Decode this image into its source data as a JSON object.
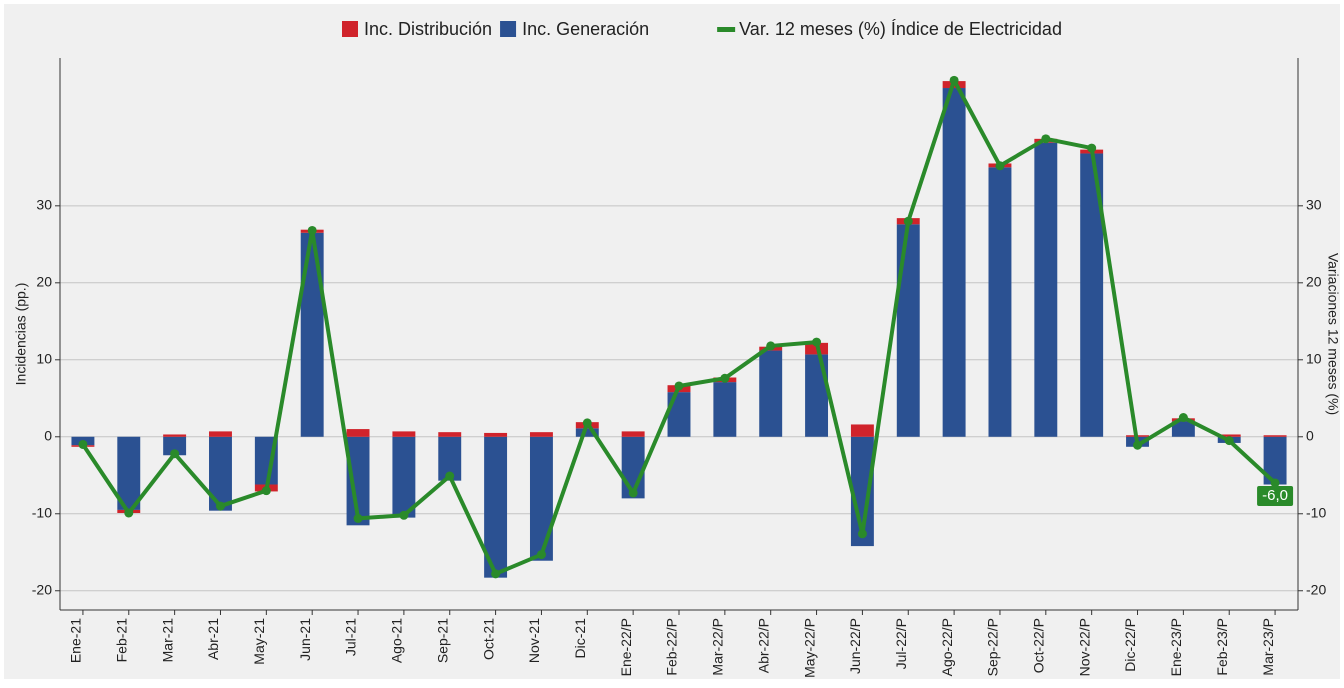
{
  "chart_data": {
    "type": "bar-line",
    "y_label": "Incidencias (pp.)",
    "y2_label": "Variaciones 12 meses (%)",
    "categories": [
      "Ene-21",
      "Feb-21",
      "Mar-21",
      "Abr-21",
      "May-21",
      "Jun-21",
      "Jul-21",
      "Ago-21",
      "Sep-21",
      "Oct-21",
      "Nov-21",
      "Dic-21",
      "Ene-22/P",
      "Feb-22/P",
      "Mar-22/P",
      "Abr-22/P",
      "May-22/P",
      "Jun-22/P",
      "Jul-22/P",
      "Ago-22/P",
      "Sep-22/P",
      "Oct-22/P",
      "Nov-22/P",
      "Dic-22/P",
      "Ene-23/P",
      "Feb-23/P",
      "Mar-23/P"
    ],
    "series": [
      {
        "name": "Inc. Generación",
        "color": "#2b5192",
        "stack": "inc",
        "values": [
          -1.1,
          -9.5,
          -2.4,
          -9.6,
          -6.2,
          26.5,
          -11.5,
          -10.5,
          -5.7,
          -18.3,
          -16.1,
          1.1,
          -8.0,
          5.8,
          7.1,
          11.2,
          10.7,
          -14.2,
          27.6,
          45.3,
          35.0,
          38.2,
          36.8,
          -1.3,
          2.0,
          -0.8,
          -6.2
        ]
      },
      {
        "name": "Inc. Distribución",
        "color": "#d0232b",
        "stack": "inc",
        "values": [
          -0.2,
          -0.4,
          0.3,
          0.7,
          -0.9,
          0.4,
          1.0,
          0.7,
          0.6,
          0.5,
          0.6,
          0.8,
          0.7,
          0.9,
          0.6,
          0.5,
          1.5,
          1.6,
          0.8,
          0.9,
          0.5,
          0.5,
          0.5,
          0.2,
          0.4,
          0.3,
          0.2
        ]
      },
      {
        "name": "Var. 12 meses (%) Índice de Electricidad",
        "color": "#2a8a2a",
        "type": "line",
        "axis": "y2",
        "values": [
          -1.0,
          -9.9,
          -2.2,
          -9.0,
          -7.0,
          26.8,
          -10.6,
          -10.2,
          -5.1,
          -17.8,
          -15.3,
          1.8,
          -7.3,
          6.6,
          7.6,
          11.8,
          12.3,
          -12.6,
          28.0,
          46.3,
          35.2,
          38.7,
          37.5,
          -1.1,
          2.5,
          -0.5,
          -6.0
        ],
        "value_labels": [
          null,
          null,
          null,
          null,
          null,
          null,
          null,
          null,
          null,
          null,
          null,
          null,
          null,
          null,
          null,
          null,
          null,
          null,
          null,
          null,
          null,
          null,
          null,
          null,
          null,
          null,
          "-6,0"
        ]
      }
    ],
    "legend_order": [
      1,
      0,
      2
    ],
    "ylim": [
      -22.5,
      49.2
    ],
    "yticks": [
      -20,
      -10,
      0,
      10,
      20,
      30
    ],
    "y2lim": [
      -22.5,
      49.2
    ],
    "y2ticks": [
      -20,
      -10,
      0,
      10,
      20,
      30
    ],
    "grid": true
  }
}
